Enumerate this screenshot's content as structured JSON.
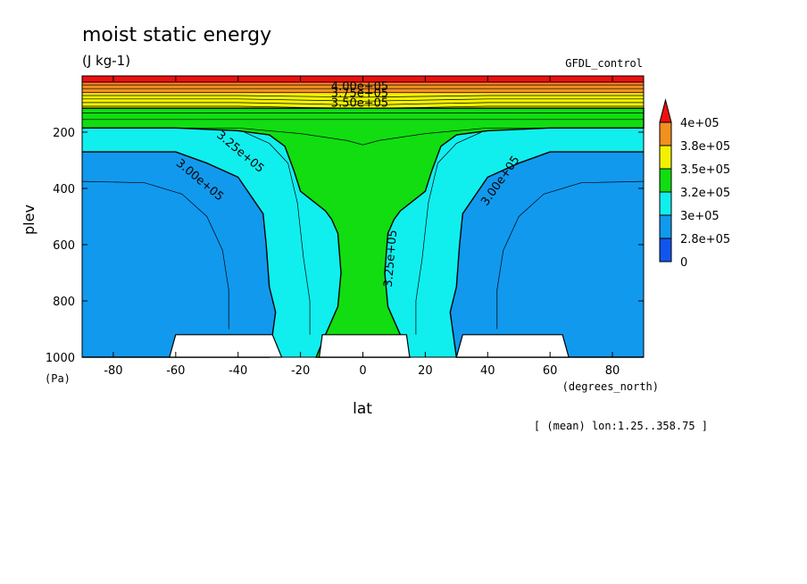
{
  "chart_data": {
    "type": "contour",
    "title": "moist static energy",
    "units": "(J kg-1)",
    "dataset_label": "GFDL_control",
    "xlabel": "lat",
    "x_units": "(degrees_north)",
    "ylabel": "plev",
    "y_units": "(Pa)",
    "footnote": "[ (mean) lon:1.25..358.75 ]",
    "xlim": [
      -90,
      90
    ],
    "ylim": [
      1000,
      0
    ],
    "x_ticks": [
      -80,
      -60,
      -40,
      -20,
      0,
      20,
      40,
      60,
      80
    ],
    "y_ticks": [
      1000,
      800,
      600,
      400,
      200
    ],
    "colorbar": {
      "labels": [
        "4e+05",
        "3.8e+05",
        "3.5e+05",
        "3.2e+05",
        "3e+05",
        "2.8e+05",
        "0"
      ],
      "colors": [
        "#ee1111",
        "#f29020",
        "#f2f200",
        "#11dd11",
        "#11eeee",
        "#1199ee",
        "#1155ee"
      ]
    },
    "contour_labels": [
      {
        "text": "4.00e+05",
        "lat": -1,
        "plev": 50
      },
      {
        "text": "3.75e+05",
        "lat": -1,
        "plev": 75
      },
      {
        "text": "3.50e+05",
        "lat": -1,
        "plev": 110
      },
      {
        "text": "3.25e+05",
        "lat": -40,
        "plev": 280
      },
      {
        "text": "3.00e+05",
        "lat": -53,
        "plev": 380
      },
      {
        "text": "3.25e+05",
        "lat": 10,
        "plev": 650
      },
      {
        "text": "3.00e+05",
        "lat": 45,
        "plev": 380
      }
    ],
    "fill_regions": [
      {
        "level": "cyan",
        "color": "#11eeee",
        "points": [
          [
            -90,
            170
          ],
          [
            90,
            170
          ],
          [
            90,
            1000
          ],
          [
            -90,
            1000
          ]
        ]
      },
      {
        "level": "blue-left",
        "color": "#1199ee",
        "points": [
          [
            -90,
            270
          ],
          [
            -60,
            270
          ],
          [
            -50,
            310
          ],
          [
            -40,
            360
          ],
          [
            -32,
            490
          ],
          [
            -31,
            600
          ],
          [
            -30,
            750
          ],
          [
            -28,
            840
          ],
          [
            -30,
            1000
          ],
          [
            -90,
            1000
          ]
        ]
      },
      {
        "level": "blue-right",
        "color": "#1199ee",
        "points": [
          [
            90,
            270
          ],
          [
            60,
            270
          ],
          [
            50,
            310
          ],
          [
            40,
            360
          ],
          [
            32,
            490
          ],
          [
            31,
            600
          ],
          [
            30,
            750
          ],
          [
            28,
            840
          ],
          [
            30,
            1000
          ],
          [
            90,
            1000
          ]
        ]
      },
      {
        "level": "green",
        "color": "#11dd11",
        "points": [
          [
            -90,
            115
          ],
          [
            90,
            115
          ],
          [
            90,
            185
          ],
          [
            60,
            185
          ],
          [
            40,
            195
          ],
          [
            30,
            210
          ],
          [
            25,
            250
          ],
          [
            22,
            340
          ],
          [
            20,
            410
          ],
          [
            12,
            480
          ],
          [
            10,
            510
          ],
          [
            8,
            560
          ],
          [
            7,
            700
          ],
          [
            8,
            820
          ],
          [
            12,
            920
          ],
          [
            15,
            1000
          ],
          [
            -15,
            1000
          ],
          [
            -12,
            920
          ],
          [
            -8,
            820
          ],
          [
            -7,
            700
          ],
          [
            -8,
            560
          ],
          [
            -10,
            510
          ],
          [
            -12,
            480
          ],
          [
            -20,
            410
          ],
          [
            -22,
            340
          ],
          [
            -25,
            250
          ],
          [
            -30,
            210
          ],
          [
            -40,
            195
          ],
          [
            -60,
            185
          ],
          [
            -90,
            185
          ]
        ]
      },
      {
        "level": "yellow",
        "color": "#f2f200",
        "points": [
          [
            -90,
            62
          ],
          [
            90,
            62
          ],
          [
            90,
            115
          ],
          [
            -90,
            115
          ]
        ]
      },
      {
        "level": "orange",
        "color": "#f29020",
        "points": [
          [
            -90,
            25
          ],
          [
            90,
            25
          ],
          [
            90,
            62
          ],
          [
            -90,
            62
          ]
        ]
      },
      {
        "level": "red",
        "color": "#ee1111",
        "points": [
          [
            -90,
            0
          ],
          [
            90,
            0
          ],
          [
            90,
            25
          ],
          [
            -90,
            25
          ]
        ]
      }
    ],
    "contour_lines": [
      [
        [
          -90,
          185
        ],
        [
          -40,
          185
        ],
        [
          -20,
          205
        ],
        [
          -5,
          230
        ],
        [
          0,
          245
        ],
        [
          5,
          230
        ],
        [
          20,
          205
        ],
        [
          40,
          185
        ],
        [
          90,
          185
        ]
      ],
      [
        [
          -90,
          155
        ],
        [
          90,
          155
        ]
      ],
      [
        [
          -90,
          132
        ],
        [
          90,
          132
        ]
      ],
      [
        [
          -90,
          108
        ],
        [
          -40,
          108
        ],
        [
          -20,
          112
        ],
        [
          0,
          115
        ],
        [
          20,
          112
        ],
        [
          40,
          108
        ],
        [
          90,
          108
        ]
      ],
      [
        [
          -90,
          95
        ],
        [
          -40,
          95
        ],
        [
          -15,
          100
        ],
        [
          0,
          104
        ],
        [
          15,
          100
        ],
        [
          40,
          95
        ],
        [
          90,
          95
        ]
      ],
      [
        [
          -90,
          82
        ],
        [
          -40,
          82
        ],
        [
          0,
          90
        ],
        [
          40,
          82
        ],
        [
          90,
          82
        ]
      ],
      [
        [
          -90,
          70
        ],
        [
          -40,
          70
        ],
        [
          0,
          76
        ],
        [
          40,
          70
        ],
        [
          90,
          70
        ]
      ],
      [
        [
          -90,
          58
        ],
        [
          90,
          58
        ]
      ],
      [
        [
          -90,
          45
        ],
        [
          90,
          45
        ]
      ],
      [
        [
          -90,
          32
        ],
        [
          90,
          32
        ]
      ],
      [
        [
          -90,
          22
        ],
        [
          90,
          22
        ]
      ],
      [
        [
          -90,
          375
        ],
        [
          -70,
          380
        ],
        [
          -58,
          420
        ],
        [
          -50,
          500
        ],
        [
          -45,
          620
        ],
        [
          -43,
          760
        ],
        [
          -43,
          900
        ]
      ],
      [
        [
          90,
          375
        ],
        [
          70,
          380
        ],
        [
          58,
          420
        ],
        [
          50,
          500
        ],
        [
          45,
          620
        ],
        [
          43,
          760
        ],
        [
          43,
          900
        ]
      ],
      [
        [
          -38,
          200
        ],
        [
          -30,
          240
        ],
        [
          -24,
          310
        ],
        [
          -21,
          450
        ],
        [
          -19,
          650
        ],
        [
          -17,
          800
        ],
        [
          -17,
          920
        ]
      ],
      [
        [
          38,
          200
        ],
        [
          30,
          240
        ],
        [
          24,
          310
        ],
        [
          21,
          450
        ],
        [
          19,
          650
        ],
        [
          17,
          800
        ],
        [
          17,
          920
        ]
      ]
    ],
    "topography": [
      {
        "points": [
          [
            -62,
            1000
          ],
          [
            -60,
            920
          ],
          [
            -29,
            920
          ],
          [
            -26,
            1000
          ]
        ]
      },
      {
        "points": [
          [
            -14,
            1000
          ],
          [
            -13,
            920
          ],
          [
            14,
            920
          ],
          [
            15,
            1000
          ]
        ]
      },
      {
        "points": [
          [
            30,
            1000
          ],
          [
            32,
            920
          ],
          [
            64,
            920
          ],
          [
            66,
            1000
          ]
        ]
      }
    ]
  }
}
